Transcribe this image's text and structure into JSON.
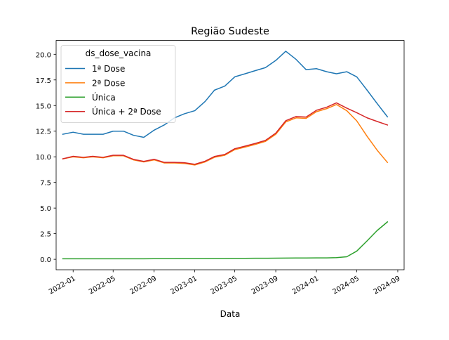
{
  "chart_data": {
    "type": "line",
    "title": "Região Sudeste",
    "xlabel": "Data",
    "ylabel": "",
    "xlim": [
      "2021-11-11",
      "2024-09-20"
    ],
    "ylim": [
      -1.02,
      21.35
    ],
    "x_ticks": [
      {
        "date": "2022-01-01",
        "label": "2022-01"
      },
      {
        "date": "2022-05-01",
        "label": "2022-05"
      },
      {
        "date": "2022-09-01",
        "label": "2022-09"
      },
      {
        "date": "2023-01-01",
        "label": "2023-01"
      },
      {
        "date": "2023-05-01",
        "label": "2023-05"
      },
      {
        "date": "2023-09-01",
        "label": "2023-09"
      },
      {
        "date": "2024-01-01",
        "label": "2024-01"
      },
      {
        "date": "2024-05-01",
        "label": "2024-05"
      },
      {
        "date": "2024-09-01",
        "label": "2024-09"
      }
    ],
    "y_ticks": [
      {
        "value": 0.0,
        "label": "0.0"
      },
      {
        "value": 2.5,
        "label": "2.5"
      },
      {
        "value": 5.0,
        "label": "5.0"
      },
      {
        "value": 7.5,
        "label": "7.5"
      },
      {
        "value": 10.0,
        "label": "10.0"
      },
      {
        "value": 12.5,
        "label": "12.5"
      },
      {
        "value": 15.0,
        "label": "15.0"
      },
      {
        "value": 17.5,
        "label": "17.5"
      },
      {
        "value": 20.0,
        "label": "20.0"
      }
    ],
    "grid": false,
    "legend": {
      "title": "ds_dose_vacina",
      "position": "top-left"
    },
    "x": [
      "2021-12-01",
      "2022-01-01",
      "2022-02-01",
      "2022-03-01",
      "2022-04-01",
      "2022-05-01",
      "2022-06-01",
      "2022-07-01",
      "2022-08-01",
      "2022-09-01",
      "2022-10-01",
      "2022-11-01",
      "2022-12-01",
      "2023-01-01",
      "2023-02-01",
      "2023-03-01",
      "2023-04-01",
      "2023-05-01",
      "2023-06-01",
      "2023-07-01",
      "2023-08-01",
      "2023-09-01",
      "2023-10-01",
      "2023-11-01",
      "2023-12-01",
      "2024-01-01",
      "2024-02-01",
      "2024-03-01",
      "2024-04-01",
      "2024-05-01",
      "2024-06-01",
      "2024-07-01",
      "2024-08-01"
    ],
    "series": [
      {
        "name": "1ª Dose",
        "color": "#1f77b4",
        "values": [
          12.2,
          12.4,
          12.2,
          12.2,
          12.2,
          12.5,
          12.5,
          12.1,
          11.9,
          12.6,
          13.1,
          13.8,
          14.2,
          14.5,
          15.4,
          16.5,
          16.9,
          17.8,
          18.1,
          18.4,
          18.7,
          19.4,
          20.3,
          19.5,
          18.5,
          18.6,
          18.3,
          18.1,
          18.3,
          17.8,
          16.5,
          15.2,
          13.9
        ]
      },
      {
        "name": "2ª Dose",
        "color": "#ff7f0e",
        "values": [
          9.8,
          10.0,
          9.9,
          10.0,
          9.9,
          10.1,
          10.1,
          9.7,
          9.5,
          9.7,
          9.4,
          9.4,
          9.35,
          9.2,
          9.5,
          9.95,
          10.15,
          10.7,
          10.95,
          11.2,
          11.5,
          12.2,
          13.4,
          13.8,
          13.75,
          14.4,
          14.7,
          15.1,
          14.5,
          13.5,
          12.0,
          10.65,
          9.45
        ]
      },
      {
        "name": "Única",
        "color": "#2ca02c",
        "values": [
          0.05,
          0.05,
          0.05,
          0.05,
          0.05,
          0.05,
          0.05,
          0.05,
          0.05,
          0.06,
          0.06,
          0.06,
          0.07,
          0.07,
          0.07,
          0.08,
          0.08,
          0.09,
          0.09,
          0.1,
          0.1,
          0.11,
          0.12,
          0.13,
          0.13,
          0.14,
          0.14,
          0.16,
          0.25,
          0.8,
          1.8,
          2.8,
          3.65
        ]
      },
      {
        "name": "Única + 2ª Dose",
        "color": "#d62728",
        "values": [
          9.8,
          10.05,
          9.95,
          10.05,
          9.95,
          10.15,
          10.15,
          9.75,
          9.55,
          9.76,
          9.46,
          9.46,
          9.42,
          9.27,
          9.57,
          10.03,
          10.23,
          10.79,
          11.04,
          11.3,
          11.6,
          12.31,
          13.52,
          13.93,
          13.88,
          14.54,
          14.84,
          15.26,
          14.75,
          14.3,
          13.8,
          13.45,
          13.1
        ]
      }
    ]
  }
}
